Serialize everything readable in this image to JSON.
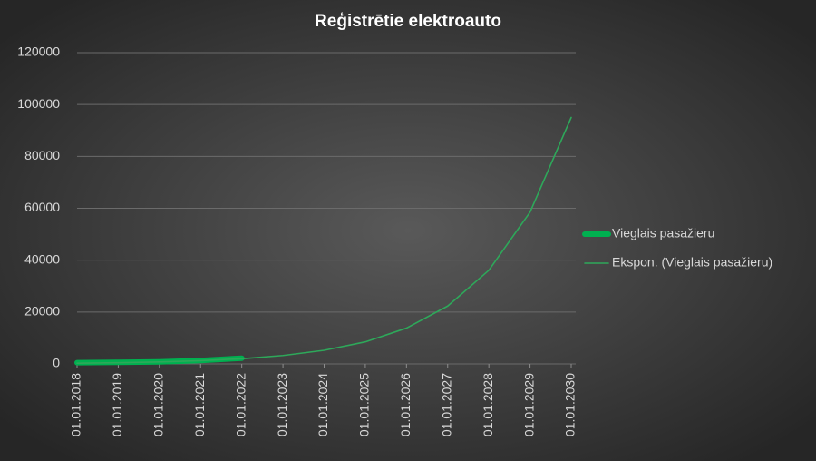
{
  "chart_data": {
    "type": "line",
    "title": "Reģistrētie elektroauto",
    "categories": [
      "01.01.2018",
      "01.01.2019",
      "01.01.2020",
      "01.01.2021",
      "01.01.2022",
      "01.01.2023",
      "01.01.2024",
      "01.01.2025",
      "01.01.2026",
      "01.01.2027",
      "01.01.2028",
      "01.01.2029",
      "01.01.2030"
    ],
    "series": [
      {
        "name": "Vieglais pasažieru",
        "color": "#00b050",
        "values": [
          500,
          600,
          800,
          1300,
          2200,
          null,
          null,
          null,
          null,
          null,
          null,
          null,
          null
        ]
      },
      {
        "name": "Ekspon. (Vieglais pasažieru)",
        "color": "#2ea85a",
        "values": [
          290,
          470,
          760,
          1230,
          2000,
          3240,
          5250,
          8500,
          13800,
          22300,
          36100,
          58500,
          95000
        ]
      }
    ],
    "ylim": [
      0,
      120000
    ],
    "yticks": [
      0,
      20000,
      40000,
      60000,
      80000,
      100000,
      120000
    ],
    "grid": true,
    "legend": "right"
  }
}
